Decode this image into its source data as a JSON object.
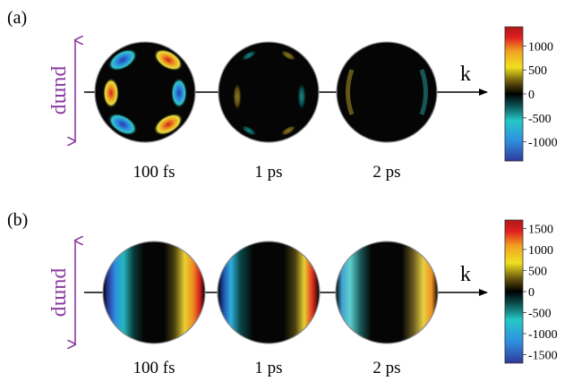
{
  "panels": [
    {
      "label": "(a)",
      "pump_label": "pump",
      "axis_label": "k",
      "times": [
        "100 fs",
        "1 ps",
        "2 ps"
      ],
      "colorbar_ticks": [
        "1000",
        "500",
        "0",
        "-500",
        "-1000"
      ],
      "colorbar_values": [
        1000,
        500,
        0,
        -500,
        -1000
      ],
      "colorbar_range": [
        -1400,
        1400
      ]
    },
    {
      "label": "(b)",
      "pump_label": "pump",
      "axis_label": "k",
      "times": [
        "100 fs",
        "1 ps",
        "2 ps"
      ],
      "colorbar_ticks": [
        "1500",
        "1000",
        "500",
        "0",
        "-500",
        "-1000",
        "-1500"
      ],
      "colorbar_values": [
        1500,
        1000,
        500,
        0,
        -500,
        -1000,
        -1500
      ],
      "colorbar_range": [
        -1700,
        1700
      ]
    }
  ],
  "colors": {
    "pump": "#8a3aa0",
    "colormap": [
      "#2f3a9a",
      "#2f8fe0",
      "#25c8c8",
      "#0a4a4a",
      "#000000",
      "#5a4a0a",
      "#f0e020",
      "#f0a020",
      "#e02020",
      "#b01818"
    ]
  }
}
